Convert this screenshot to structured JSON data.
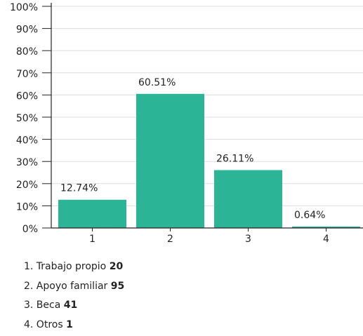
{
  "chart_data": {
    "type": "bar",
    "categories": [
      "1",
      "2",
      "3",
      "4"
    ],
    "values": [
      12.74,
      60.51,
      26.11,
      0.64
    ],
    "value_labels": [
      "12.74%",
      "60.51%",
      "26.11%",
      "0.64%"
    ],
    "y_ticks": [
      "0%",
      "10%",
      "20%",
      "30%",
      "40%",
      "50%",
      "60%",
      "70%",
      "80%",
      "90%",
      "100%"
    ],
    "ylim": [
      0,
      100
    ],
    "grid": true,
    "bar_color": "#2bb596"
  },
  "legend": [
    {
      "text": "1. Trabajo propio",
      "count": "20"
    },
    {
      "text": "2. Apoyo familiar",
      "count": "95"
    },
    {
      "text": "3. Beca",
      "count": "41"
    },
    {
      "text": "4. Otros",
      "count": "1"
    }
  ]
}
